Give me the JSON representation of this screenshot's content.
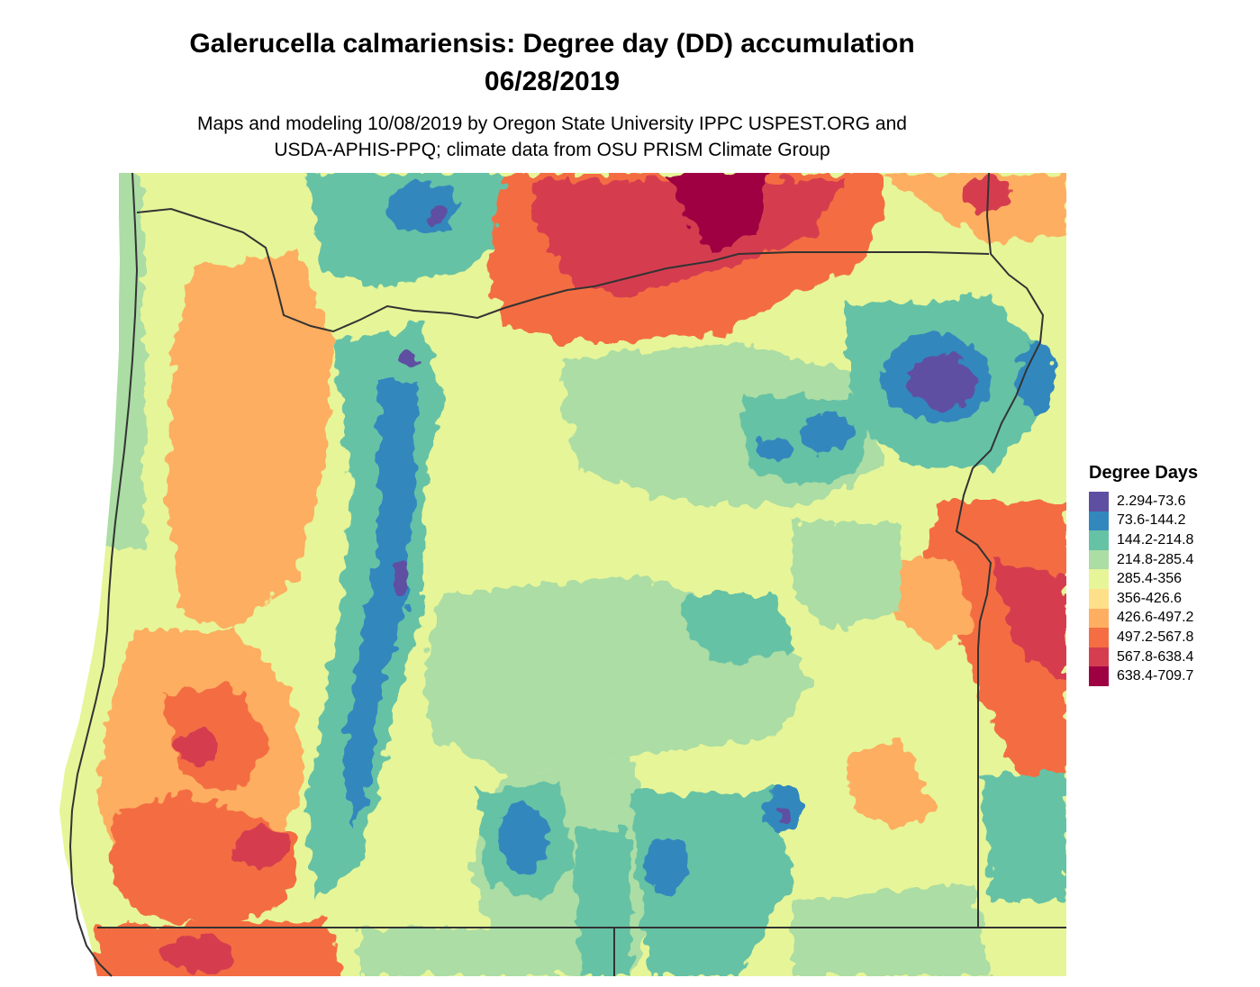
{
  "title": {
    "line1": "Galerucella calmariensis: Degree day (DD) accumulation",
    "line2": "06/28/2019"
  },
  "subtitle": {
    "line1": "Maps and modeling 10/08/2019 by Oregon State University IPPC USPEST.ORG and",
    "line2": "USDA-APHIS-PPQ; climate data from OSU PRISM Climate Group"
  },
  "legend": {
    "title": "Degree Days",
    "items": [
      {
        "label": "2.294-73.6",
        "color": "#5e4fa2"
      },
      {
        "label": "73.6-144.2",
        "color": "#3288bd"
      },
      {
        "label": "144.2-214.8",
        "color": "#66c2a5"
      },
      {
        "label": "214.8-285.4",
        "color": "#abdda4"
      },
      {
        "label": "285.4-356",
        "color": "#e6f598"
      },
      {
        "label": "356-426.6",
        "color": "#fee08b"
      },
      {
        "label": "426.6-497.2",
        "color": "#fdae61"
      },
      {
        "label": "497.2-567.8",
        "color": "#f46d43"
      },
      {
        "label": "567.8-638.4",
        "color": "#d53e4f"
      },
      {
        "label": "638.4-709.7",
        "color": "#9e0142"
      }
    ]
  },
  "map": {
    "region": "Oregon",
    "boundary_color": "#333333"
  }
}
